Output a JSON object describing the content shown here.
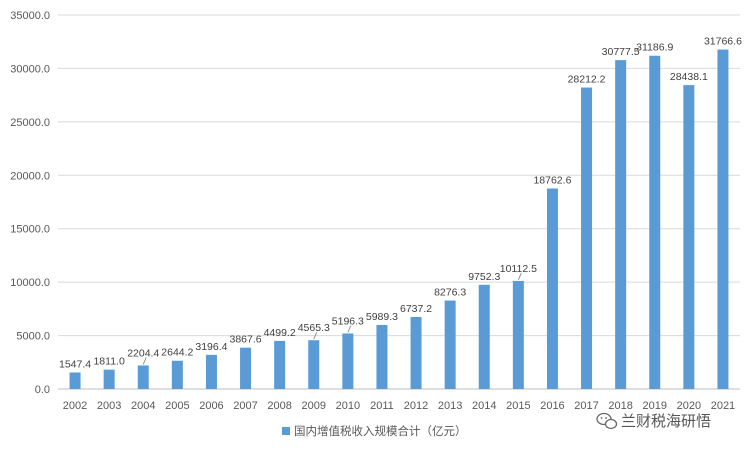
{
  "chart_data": {
    "type": "bar",
    "categories": [
      "2002",
      "2003",
      "2004",
      "2005",
      "2006",
      "2007",
      "2008",
      "2009",
      "2010",
      "2011",
      "2012",
      "2013",
      "2014",
      "2015",
      "2016",
      "2017",
      "2018",
      "2019",
      "2020",
      "2021"
    ],
    "series": [
      {
        "name": "国内增值税收入规模合计（亿元）",
        "color": "#5b9bd5",
        "values": [
          1547.4,
          1811.0,
          2204.4,
          2644.2,
          3196.4,
          3867.6,
          4499.2,
          4565.3,
          5196.3,
          5989.3,
          6737.2,
          8276.3,
          9752.3,
          10112.5,
          18762.6,
          28212.2,
          30777.5,
          31186.9,
          28438.1,
          31766.6
        ],
        "labels": [
          "1547.4",
          "1811.0",
          "2204.4",
          "2644.2",
          "3196.4",
          "3867.6",
          "4499.2",
          "4565.3",
          "5196.3",
          "5989.3",
          "6737.2",
          "8276.3",
          "9752.3",
          "10112.5",
          "18762.6",
          "28212.2",
          "30777.5",
          "31186.9",
          "28438.1",
          "31766.6"
        ]
      }
    ],
    "ylim": [
      0,
      35000
    ],
    "yticks": [
      "0.0",
      "5000.0",
      "10000.0",
      "15000.0",
      "20000.0",
      "25000.0",
      "30000.0",
      "35000.0"
    ],
    "grid": true,
    "legend_position": "bottom"
  },
  "watermark": {
    "text": "兰财税海研悟",
    "icon": "wechat-logo"
  },
  "colors": {
    "grid": "#d9d9d9",
    "axis": "#bfbfbf"
  }
}
